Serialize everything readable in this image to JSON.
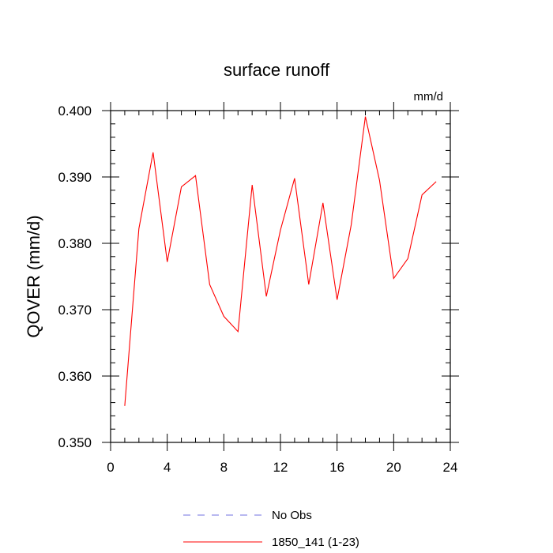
{
  "chart_data": {
    "type": "line",
    "title": "surface runoff",
    "units_label": "mm/d",
    "xlabel": "",
    "ylabel": "QOVER  (mm/d)",
    "xlim": [
      0,
      24
    ],
    "ylim": [
      0.35,
      0.4
    ],
    "x_ticks": [
      0,
      4,
      8,
      12,
      16,
      20,
      24
    ],
    "x_tick_labels": [
      "0",
      "4",
      "8",
      "12",
      "16",
      "20",
      "24"
    ],
    "y_ticks": [
      0.35,
      0.36,
      0.37,
      0.38,
      0.39,
      0.4
    ],
    "y_tick_labels": [
      "0.350",
      "0.360",
      "0.370",
      "0.380",
      "0.390",
      "0.400"
    ],
    "x_minor_step": 1,
    "y_minor_step": 0.002,
    "grid": false,
    "legend_position": "bottom",
    "series": [
      {
        "name": "No Obs",
        "color": "#7070e0",
        "dash": "dashed",
        "x": [],
        "values": []
      },
      {
        "name": "1850_141 (1-23)",
        "color": "#ff0000",
        "dash": "solid",
        "x": [
          1,
          2,
          3,
          4,
          5,
          6,
          7,
          8,
          9,
          10,
          11,
          12,
          13,
          14,
          15,
          16,
          17,
          18,
          19,
          20,
          21,
          22,
          23
        ],
        "values": [
          0.3555,
          0.3822,
          0.3937,
          0.3772,
          0.3885,
          0.3902,
          0.3738,
          0.369,
          0.3667,
          0.3888,
          0.372,
          0.382,
          0.3898,
          0.3738,
          0.3861,
          0.3715,
          0.3828,
          0.3991,
          0.3895,
          0.3747,
          0.3777,
          0.3873,
          0.3893
        ]
      }
    ]
  }
}
